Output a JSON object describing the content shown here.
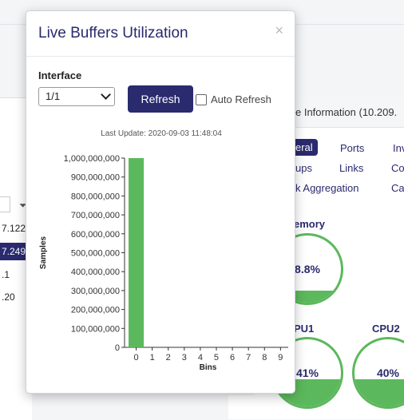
{
  "background": {
    "left_rows": [
      "7.122",
      "7.249",
      ".1",
      ".20"
    ],
    "left_selected_index": 1,
    "device_info": "e Information (10.209.",
    "tabs": [
      "eral",
      "Ports",
      "Inv",
      "ups",
      "Links",
      "Co",
      "k Aggregation",
      "Ca"
    ],
    "gauges": [
      {
        "title": "emory",
        "value": "8.8%",
        "fill": 0.18
      },
      {
        "title": "PU1",
        "value": "41%",
        "fill": 0.41
      },
      {
        "title": "CPU2",
        "value": "40%",
        "fill": 0.4
      }
    ]
  },
  "modal": {
    "title": "Live Buffers Utilization",
    "close_glyph": "×",
    "interface_label": "Interface",
    "interface_value": "1/1",
    "refresh_label": "Refresh",
    "auto_refresh_label": "Auto Refresh",
    "last_update": "Last Update: 2020-09-03 11:48:04"
  },
  "colors": {
    "accent": "#2a2a6e",
    "bar": "#5cb85c"
  },
  "chart_data": {
    "type": "bar",
    "categories": [
      "0",
      "1",
      "2",
      "3",
      "4",
      "5",
      "6",
      "7",
      "8",
      "9"
    ],
    "values": [
      1000000000,
      0,
      0,
      0,
      0,
      0,
      0,
      0,
      0,
      0
    ],
    "xlabel": "Bins",
    "ylabel": "Samples",
    "ylim": [
      0,
      1000000000
    ],
    "yticks": [
      "0",
      "100,000,000",
      "200,000,000",
      "300,000,000",
      "400,000,000",
      "500,000,000",
      "600,000,000",
      "700,000,000",
      "800,000,000",
      "900,000,000",
      "1,000,000,000"
    ]
  }
}
